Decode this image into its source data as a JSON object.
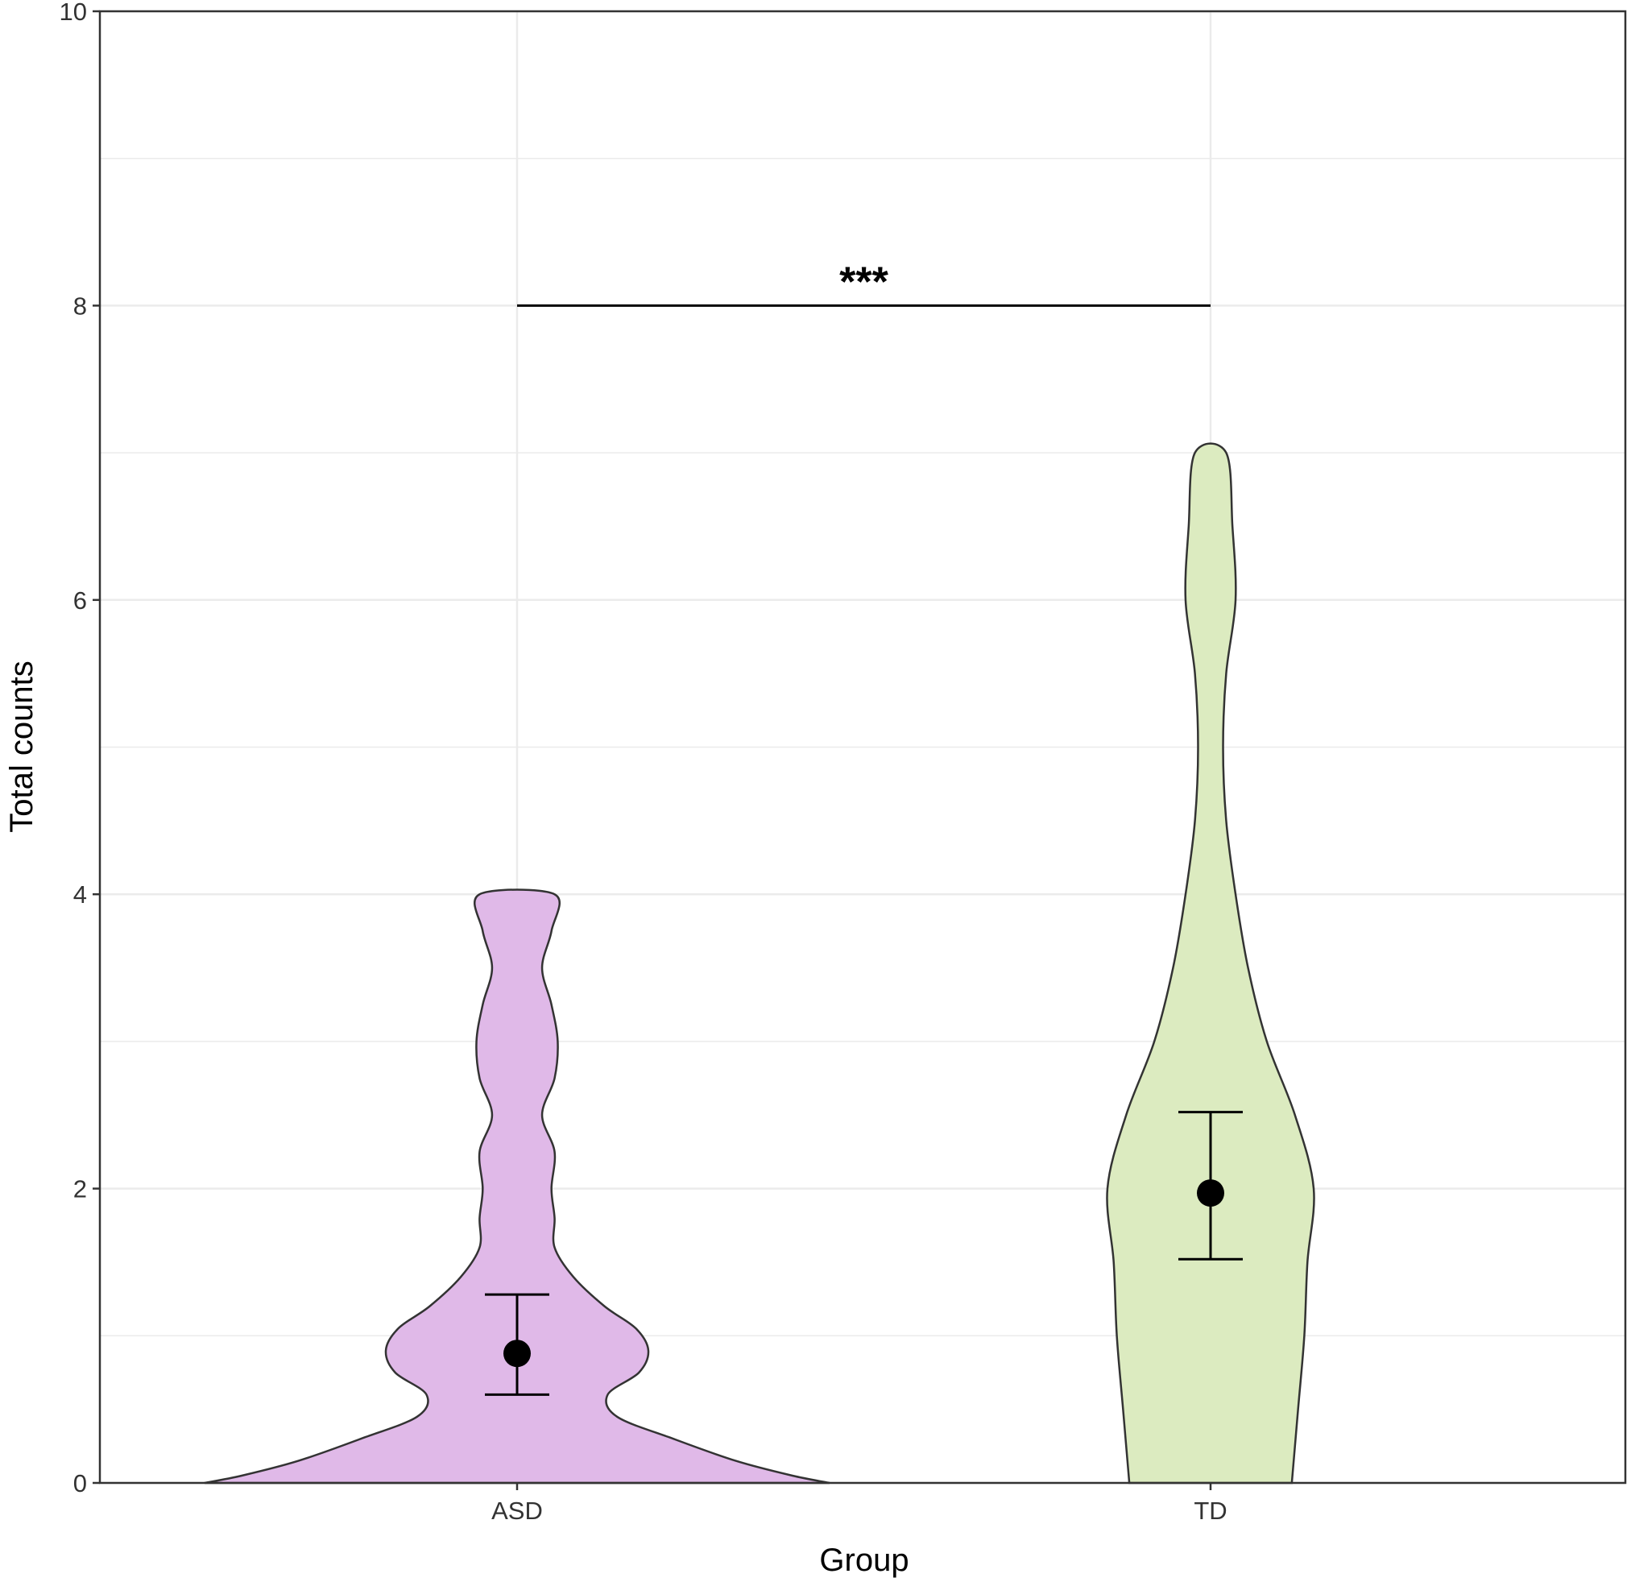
{
  "chart_data": {
    "type": "violin",
    "xlabel": "Group",
    "ylabel": "Total counts",
    "ylim": [
      0,
      10
    ],
    "yticks": [
      0,
      2,
      4,
      6,
      8,
      10
    ],
    "grid": true,
    "categories": [
      "ASD",
      "TD"
    ],
    "series": [
      {
        "category": "ASD",
        "color": "#E0B9E8",
        "mean": 0.88,
        "ci_lower": 0.6,
        "ci_upper": 1.28,
        "y_min": 0,
        "y_max": 4,
        "density_profile": [
          [
            0.0,
            1.0
          ],
          [
            0.05,
            0.88
          ],
          [
            0.15,
            0.7
          ],
          [
            0.3,
            0.5
          ],
          [
            0.45,
            0.32
          ],
          [
            0.6,
            0.29
          ],
          [
            0.75,
            0.39
          ],
          [
            0.9,
            0.42
          ],
          [
            1.05,
            0.38
          ],
          [
            1.2,
            0.28
          ],
          [
            1.4,
            0.18
          ],
          [
            1.6,
            0.12
          ],
          [
            1.8,
            0.12
          ],
          [
            2.0,
            0.11
          ],
          [
            2.25,
            0.12
          ],
          [
            2.5,
            0.08
          ],
          [
            2.75,
            0.12
          ],
          [
            3.0,
            0.13
          ],
          [
            3.25,
            0.11
          ],
          [
            3.5,
            0.08
          ],
          [
            3.75,
            0.11
          ],
          [
            4.0,
            0.12
          ]
        ]
      },
      {
        "category": "TD",
        "color": "#DCEBC0",
        "mean": 1.97,
        "ci_lower": 1.52,
        "ci_upper": 2.52,
        "y_min": 0,
        "y_max": 7,
        "density_profile": [
          [
            0.0,
            0.26
          ],
          [
            0.5,
            0.28
          ],
          [
            1.0,
            0.3
          ],
          [
            1.5,
            0.31
          ],
          [
            2.0,
            0.33
          ],
          [
            2.5,
            0.27
          ],
          [
            3.0,
            0.18
          ],
          [
            3.5,
            0.12
          ],
          [
            4.0,
            0.08
          ],
          [
            4.5,
            0.05
          ],
          [
            5.0,
            0.04
          ],
          [
            5.5,
            0.05
          ],
          [
            6.0,
            0.08
          ],
          [
            6.5,
            0.07
          ],
          [
            7.0,
            0.05
          ]
        ]
      }
    ],
    "significance": {
      "from": "ASD",
      "to": "TD",
      "y": 8,
      "label": "***"
    }
  }
}
